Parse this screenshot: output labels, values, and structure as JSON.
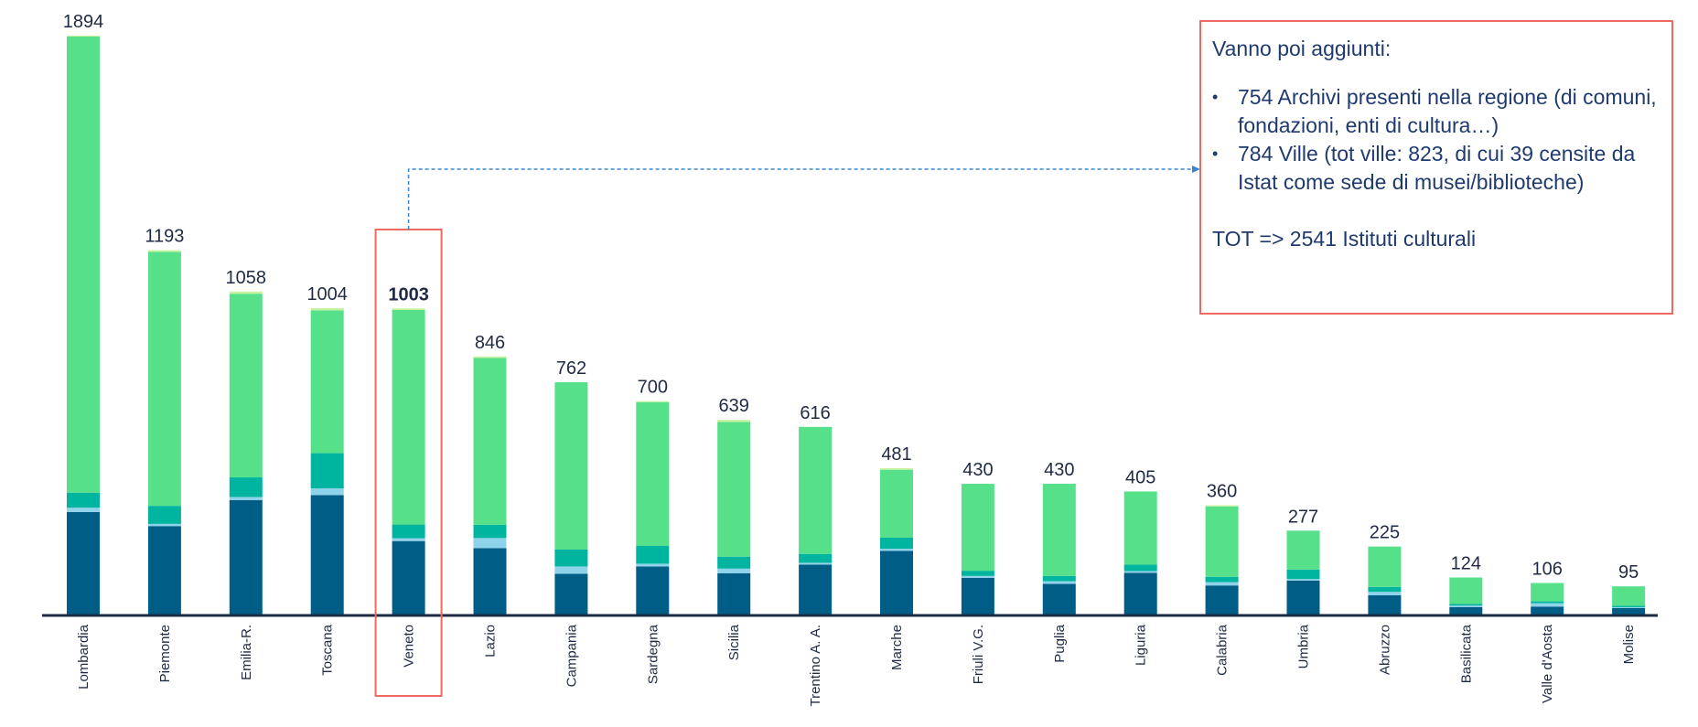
{
  "chart_data": {
    "type": "bar",
    "stacked": true,
    "categories": [
      "Lombardia",
      "Piemonte",
      "Emilia-R.",
      "Toscana",
      "Veneto",
      "Lazio",
      "Campania",
      "Sardegna",
      "Sicilia",
      "Trentino A. A.",
      "Marche",
      "Friuli V.G.",
      "Puglia",
      "Liguria",
      "Calabria",
      "Umbria",
      "Abruzzo",
      "Basilicata",
      "Valle d'Aosta",
      "Molise"
    ],
    "totals": [
      1894,
      1193,
      1058,
      1004,
      1003,
      846,
      762,
      700,
      639,
      616,
      481,
      430,
      430,
      405,
      360,
      277,
      225,
      124,
      106,
      95
    ],
    "series": [
      {
        "values": [
          338,
          292,
          377,
          393,
          243,
          220,
          136,
          160,
          138,
          166,
          211,
          123,
          103,
          139,
          98,
          114,
          66,
          27,
          29,
          24
        ]
      },
      {
        "values": [
          14,
          7,
          10,
          22,
          9,
          33,
          24,
          9,
          15,
          6,
          7,
          6,
          9,
          6,
          11,
          5,
          11,
          5,
          11,
          3
        ]
      },
      {
        "values": [
          49,
          59,
          64,
          115,
          45,
          43,
          56,
          58,
          39,
          29,
          36,
          17,
          17,
          21,
          17,
          31,
          16,
          6,
          6,
          5
        ]
      },
      {
        "values": [
          1490,
          830,
          600,
          467,
          701,
          545,
          546,
          470,
          440,
          415,
          222,
          284,
          301,
          239,
          230,
          127,
          132,
          86,
          60,
          63
        ]
      },
      {
        "values": [
          3,
          5,
          7,
          7,
          5,
          5,
          0,
          3,
          7,
          0,
          5,
          0,
          0,
          0,
          4,
          0,
          0,
          0,
          0,
          0
        ]
      }
    ],
    "colors": [
      "#005e86",
      "#8fd3ea",
      "#00b59f",
      "#56e089",
      "#c8f2a0"
    ],
    "highlight": "Veneto",
    "ylim": [
      0,
      1900
    ]
  },
  "note": {
    "intro": "Vanno poi aggiunti:",
    "bullets": [
      "754 Archivi presenti nella regione (di comuni, fondazioni, enti di cultura…)",
      "784 Ville (tot ville: 823, di cui 39 censite da Istat come sede di musei/biblioteche)"
    ],
    "total": "TOT => 2541 Istituti culturali"
  },
  "colors": {
    "highlight_border": "#f0695f",
    "arrow": "#3a86c8",
    "axis": "#1f2a44"
  }
}
